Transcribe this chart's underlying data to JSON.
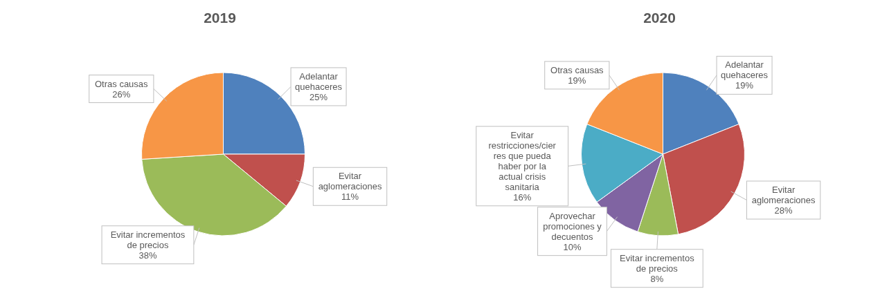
{
  "chart_data": [
    {
      "type": "pie",
      "title": "2019",
      "categories": [
        "Adelantar quehaceres",
        "Evitar aglomeraciones",
        "Evitar incrementos de precios",
        "Otras causas"
      ],
      "values": [
        25,
        11,
        38,
        26
      ],
      "colors": [
        "#4f81bd",
        "#c0504d",
        "#9bbb59",
        "#f79646"
      ],
      "value_labels": [
        "25%",
        "11%",
        "38%",
        "26%"
      ],
      "legend": false
    },
    {
      "type": "pie",
      "title": "2020",
      "categories": [
        "Adelantar quehaceres",
        "Evitar aglomeraciones",
        "Evitar incrementos de precios",
        "Aprovechar promociones y decuentos",
        "Evitar restricciones/cierres que pueda haber por la actual crisis sanitaria",
        "Otras causas"
      ],
      "values": [
        19,
        28,
        8,
        10,
        16,
        19
      ],
      "colors": [
        "#4f81bd",
        "#c0504d",
        "#9bbb59",
        "#8064a2",
        "#4bacc6",
        "#f79646"
      ],
      "value_labels": [
        "19%",
        "28%",
        "8%",
        "10%",
        "16%",
        "19%"
      ],
      "legend": false
    }
  ]
}
